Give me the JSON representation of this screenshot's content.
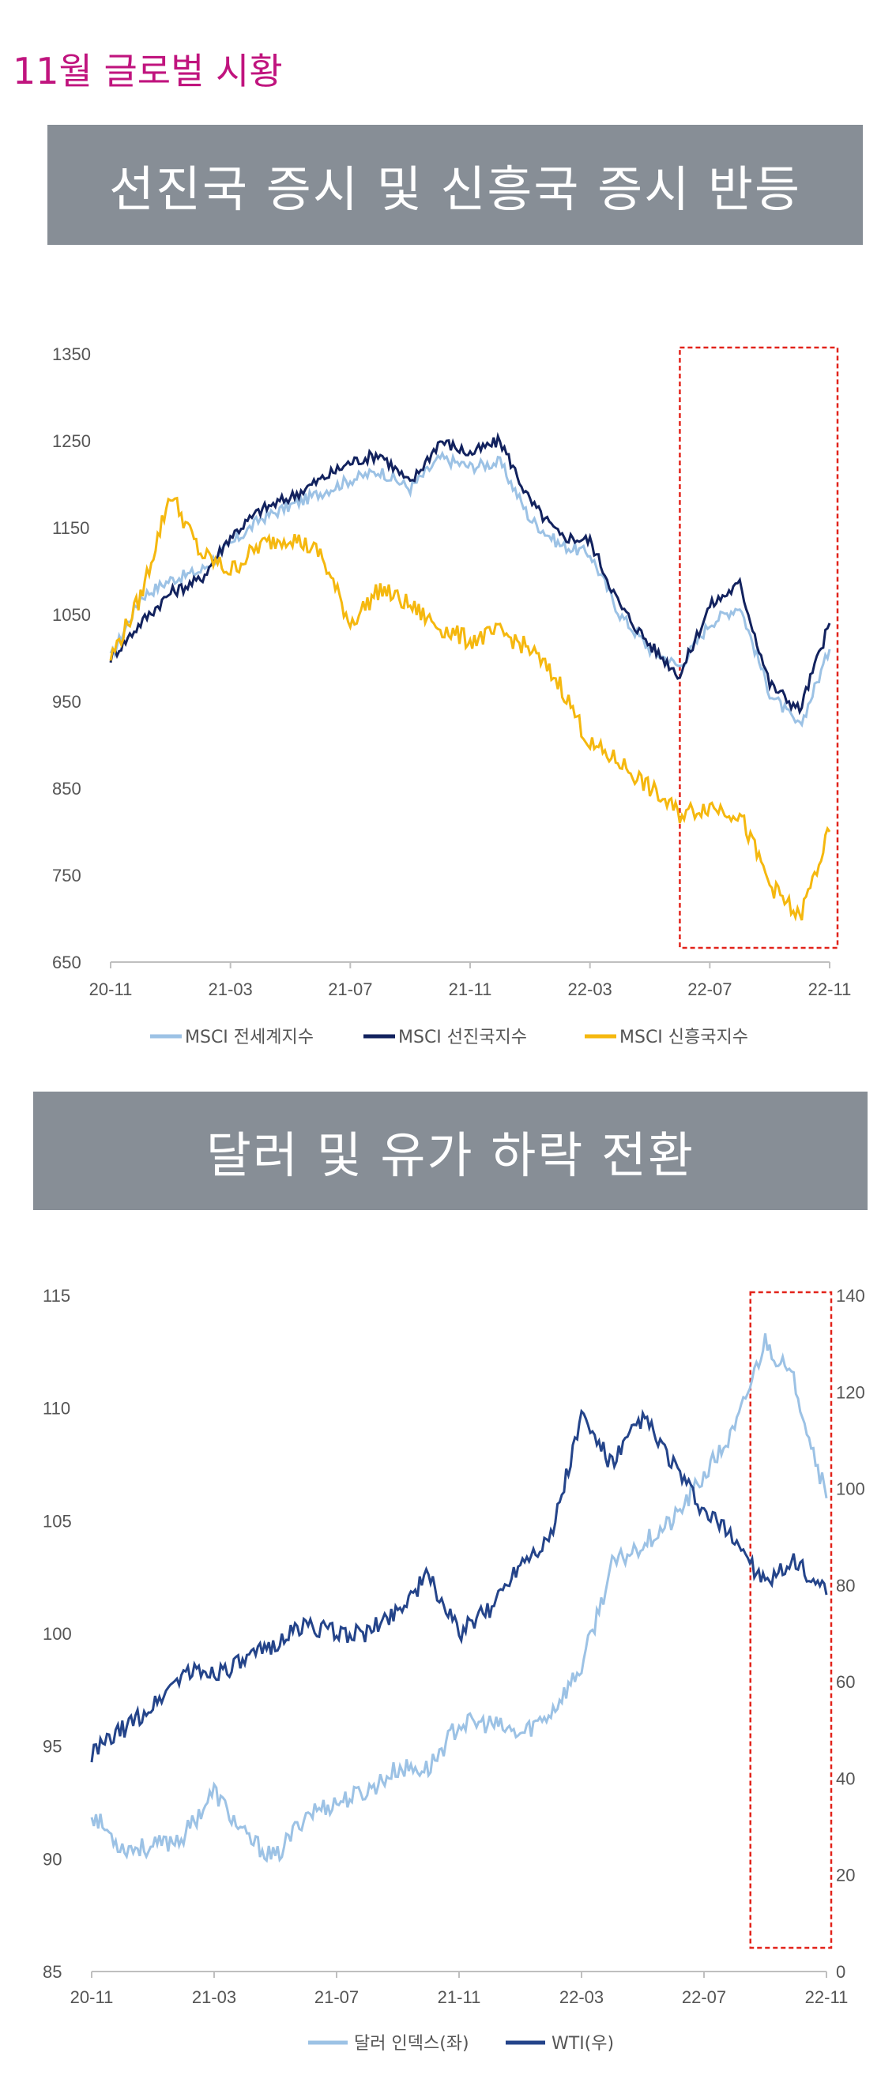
{
  "page_title": "11월 글로벌 시황",
  "chart_data": [
    {
      "type": "line",
      "title": "선진국 증시 및 신흥국 증시 반등",
      "x_ticks": [
        "20-11",
        "21-03",
        "21-07",
        "21-11",
        "22-03",
        "22-07",
        "22-11"
      ],
      "y_ticks": [
        "1350",
        "1250",
        "1150",
        "1050",
        "950",
        "850",
        "750",
        "650"
      ],
      "ylim": [
        650,
        1350
      ],
      "legend_position": "bottom",
      "highlight_range": [
        "22-06",
        "22-11"
      ],
      "x_dates": [
        "2020-11",
        "2020-12",
        "2021-01",
        "2021-02",
        "2021-03",
        "2021-04",
        "2021-05",
        "2021-06",
        "2021-07",
        "2021-08",
        "2021-09",
        "2021-10",
        "2021-11",
        "2021-12",
        "2022-01",
        "2022-02",
        "2022-03",
        "2022-04",
        "2022-05",
        "2022-06",
        "2022-07",
        "2022-08",
        "2022-09",
        "2022-10",
        "2022-11"
      ],
      "series": [
        {
          "name": "MSCI 전세계지수",
          "color": "#9cc2e5",
          "values": [
            1000,
            1070,
            1090,
            1100,
            1130,
            1160,
            1175,
            1190,
            1205,
            1215,
            1195,
            1230,
            1220,
            1225,
            1160,
            1130,
            1120,
            1050,
            1010,
            990,
            1040,
            1060,
            960,
            920,
            1010
          ]
        },
        {
          "name": "MSCI 선진국지수",
          "color": "#12225e",
          "values": [
            1000,
            1040,
            1075,
            1090,
            1140,
            1170,
            1185,
            1205,
            1225,
            1235,
            1200,
            1250,
            1235,
            1250,
            1180,
            1140,
            1135,
            1060,
            1015,
            980,
            1060,
            1085,
            970,
            940,
            1040
          ]
        },
        {
          "name": "MSCI 신흥국지수",
          "color": "#f5b80f",
          "values": [
            1000,
            1070,
            1190,
            1120,
            1100,
            1130,
            1140,
            1120,
            1040,
            1080,
            1060,
            1035,
            1020,
            1030,
            1010,
            970,
            900,
            880,
            850,
            820,
            830,
            820,
            740,
            700,
            800
          ]
        }
      ]
    },
    {
      "type": "line",
      "title": "달러 및 유가 하락 전환",
      "x_ticks": [
        "20-11",
        "21-03",
        "21-07",
        "21-11",
        "22-03",
        "22-07",
        "22-11"
      ],
      "y_left_ticks": [
        "115",
        "110",
        "105",
        "100",
        "95",
        "90",
        "85"
      ],
      "y_right_ticks": [
        "140",
        "120",
        "100",
        "80",
        "60",
        "40",
        "20",
        "0"
      ],
      "ylim_left": [
        85,
        115
      ],
      "ylim_right": [
        0,
        140
      ],
      "legend_position": "bottom",
      "highlight_range": [
        "22-08",
        "22-11"
      ],
      "x_dates": [
        "2020-11",
        "2020-12",
        "2021-01",
        "2021-02",
        "2021-03",
        "2021-04",
        "2021-05",
        "2021-06",
        "2021-07",
        "2021-08",
        "2021-09",
        "2021-10",
        "2021-11",
        "2021-12",
        "2022-01",
        "2022-02",
        "2022-03",
        "2022-04",
        "2022-05",
        "2022-06",
        "2022-07",
        "2022-08",
        "2022-09",
        "2022-10",
        "2022-11"
      ],
      "series": [
        {
          "name": "달러 인덱스(좌)",
          "axis": "left",
          "color": "#9cc2e5",
          "values": [
            92,
            90.5,
            90.5,
            91,
            93,
            91,
            90,
            92,
            92.5,
            93,
            94,
            94,
            96,
            96,
            95.5,
            96.5,
            98.5,
            103,
            104,
            105,
            107,
            109,
            113,
            111,
            106
          ]
        },
        {
          "name": "WTI(우)",
          "axis": "right",
          "color": "#24448a",
          "values": [
            45,
            50,
            55,
            62,
            62,
            64,
            68,
            72,
            70,
            70,
            75,
            82,
            70,
            75,
            85,
            90,
            115,
            105,
            115,
            105,
            95,
            90,
            80,
            85,
            78
          ]
        }
      ]
    }
  ]
}
